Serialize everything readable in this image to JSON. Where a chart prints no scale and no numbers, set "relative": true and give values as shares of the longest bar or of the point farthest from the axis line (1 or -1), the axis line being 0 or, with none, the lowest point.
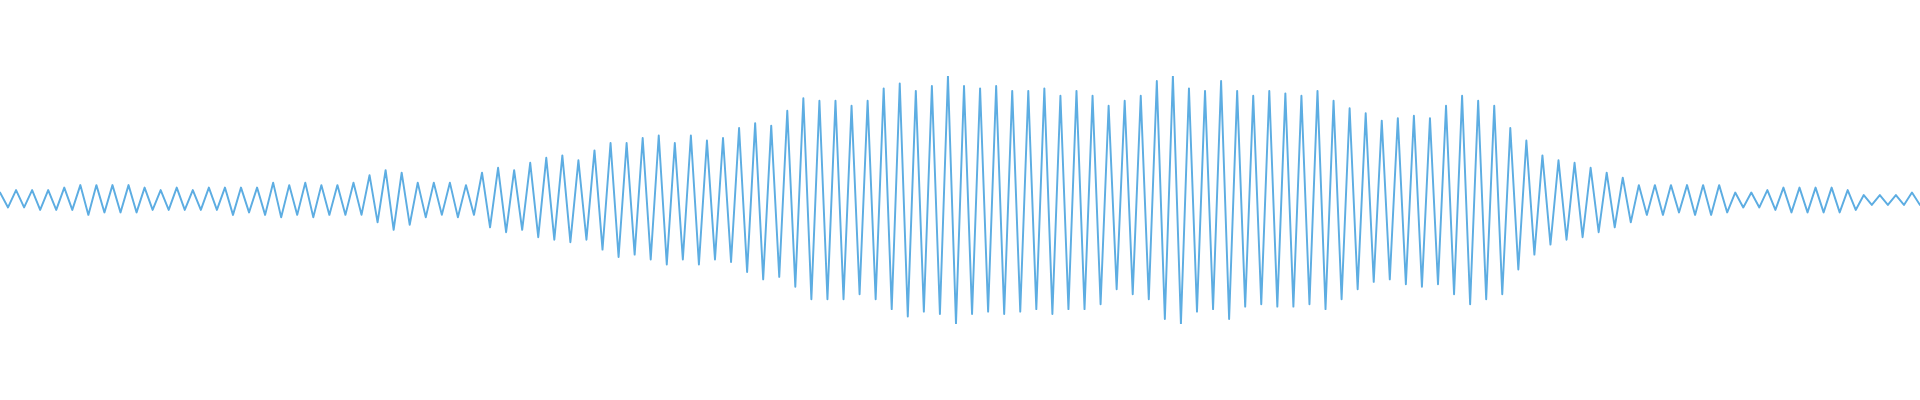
{
  "chart_data": {
    "type": "line",
    "relative": true,
    "categories": [
      null,
      null,
      null,
      null,
      null,
      null,
      null,
      null,
      null,
      null,
      null,
      null,
      null,
      null,
      null,
      null,
      null,
      null,
      null,
      null,
      null,
      null,
      null,
      null,
      null,
      null,
      null,
      null,
      null,
      null,
      null,
      null,
      null,
      null,
      null,
      null,
      null,
      null,
      null,
      null,
      null,
      null,
      null,
      null,
      null,
      null,
      null,
      null,
      null,
      null,
      null,
      null,
      null,
      null,
      null,
      null,
      null,
      null,
      null,
      null,
      null,
      null,
      null,
      null,
      null,
      null,
      null,
      null,
      null,
      null,
      null,
      null,
      null,
      null,
      null,
      null,
      null,
      null,
      null,
      null,
      null,
      null,
      null,
      null,
      null,
      null,
      null,
      null,
      null,
      null,
      null,
      null,
      null,
      null,
      null,
      null,
      null,
      null,
      null,
      null,
      null,
      null,
      null,
      null,
      null,
      null,
      null,
      null,
      null,
      null,
      null,
      null,
      null,
      null,
      null,
      null,
      null,
      null,
      null,
      null,
      null,
      null,
      null,
      null,
      null,
      null,
      null,
      null,
      null,
      null,
      null,
      null,
      null,
      null,
      null,
      null,
      null,
      null,
      null,
      null,
      null,
      null,
      null,
      null,
      null,
      null,
      null,
      null,
      null,
      null,
      null,
      null,
      null,
      null,
      null,
      null,
      null,
      null,
      null,
      null,
      null,
      null,
      null,
      null,
      null,
      null,
      null,
      null,
      null,
      null,
      null,
      null,
      null,
      null,
      null,
      null,
      null,
      null,
      null,
      null,
      null,
      null,
      null,
      null,
      null,
      null,
      null,
      null,
      null,
      null,
      null,
      null,
      null,
      null,
      null,
      null,
      null,
      null,
      null,
      null,
      null,
      null,
      null,
      null,
      null,
      null,
      null,
      null,
      null,
      null,
      null,
      null,
      null,
      null,
      null,
      null,
      null,
      null,
      null,
      null,
      null,
      null,
      null,
      null,
      null,
      null,
      null,
      null,
      null,
      null,
      null,
      null,
      null,
      null,
      null,
      null,
      null,
      null,
      null,
      null
    ],
    "series": [
      {
        "color": "#5dade2",
        "values": [
          0.53,
          0.47,
          0.54,
          0.47,
          0.54,
          0.46,
          0.54,
          0.46,
          0.55,
          0.46,
          0.56,
          0.44,
          0.56,
          0.45,
          0.56,
          0.45,
          0.56,
          0.45,
          0.55,
          0.46,
          0.54,
          0.46,
          0.55,
          0.46,
          0.54,
          0.46,
          0.55,
          0.46,
          0.55,
          0.44,
          0.55,
          0.45,
          0.55,
          0.44,
          0.57,
          0.43,
          0.56,
          0.44,
          0.57,
          0.43,
          0.56,
          0.44,
          0.56,
          0.44,
          0.57,
          0.44,
          0.6,
          0.41,
          0.62,
          0.38,
          0.61,
          0.4,
          0.57,
          0.43,
          0.57,
          0.44,
          0.57,
          0.43,
          0.56,
          0.44,
          0.61,
          0.39,
          0.63,
          0.37,
          0.62,
          0.38,
          0.65,
          0.35,
          0.67,
          0.34,
          0.68,
          0.33,
          0.66,
          0.34,
          0.7,
          0.3,
          0.73,
          0.27,
          0.73,
          0.28,
          0.75,
          0.26,
          0.76,
          0.24,
          0.73,
          0.26,
          0.76,
          0.24,
          0.74,
          0.26,
          0.75,
          0.25,
          0.79,
          0.21,
          0.81,
          0.18,
          0.8,
          0.19,
          0.86,
          0.15,
          0.91,
          0.1,
          0.9,
          0.1,
          0.9,
          0.1,
          0.88,
          0.12,
          0.9,
          0.1,
          0.95,
          0.06,
          0.97,
          0.03,
          0.94,
          0.05,
          0.96,
          0.04,
          1.0,
          0.0,
          0.96,
          0.04,
          0.95,
          0.05,
          0.96,
          0.04,
          0.94,
          0.05,
          0.94,
          0.06,
          0.95,
          0.04,
          0.92,
          0.06,
          0.94,
          0.06,
          0.92,
          0.08,
          0.88,
          0.14,
          0.9,
          0.12,
          0.92,
          0.1,
          0.98,
          0.02,
          1.0,
          0.0,
          0.95,
          0.05,
          0.94,
          0.06,
          0.98,
          0.02,
          0.94,
          0.07,
          0.92,
          0.08,
          0.94,
          0.07,
          0.93,
          0.07,
          0.92,
          0.08,
          0.94,
          0.06,
          0.9,
          0.1,
          0.87,
          0.14,
          0.85,
          0.17,
          0.82,
          0.18,
          0.83,
          0.16,
          0.84,
          0.15,
          0.83,
          0.16,
          0.88,
          0.12,
          0.92,
          0.08,
          0.9,
          0.1,
          0.88,
          0.12,
          0.79,
          0.22,
          0.74,
          0.28,
          0.68,
          0.32,
          0.66,
          0.34,
          0.65,
          0.35,
          0.63,
          0.37,
          0.61,
          0.39,
          0.59,
          0.41,
          0.56,
          0.44,
          0.56,
          0.44,
          0.56,
          0.45,
          0.56,
          0.44,
          0.56,
          0.44,
          0.56,
          0.45,
          0.53,
          0.47,
          0.53,
          0.47,
          0.54,
          0.46,
          0.55,
          0.45,
          0.55,
          0.45,
          0.55,
          0.45,
          0.55,
          0.45,
          0.54,
          0.46,
          0.52,
          0.48,
          0.52,
          0.48,
          0.52,
          0.48,
          0.53,
          0.48
        ]
      }
    ]
  }
}
